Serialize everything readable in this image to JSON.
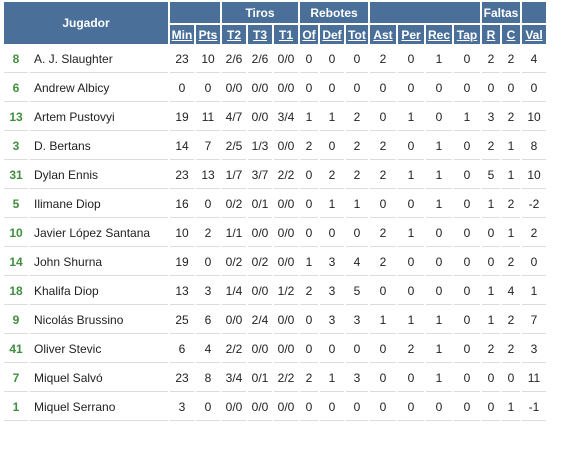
{
  "header": {
    "jugador": "Jugador",
    "groups": {
      "tiros": "Tiros",
      "rebotes": "Rebotes",
      "faltas": "Faltas"
    },
    "columns": [
      "Min",
      "Pts",
      "T2",
      "T3",
      "T1",
      "Of",
      "Def",
      "Tot",
      "Ast",
      "Per",
      "Rec",
      "Tap",
      "R",
      "C",
      "Val"
    ]
  },
  "players": [
    {
      "number": "8",
      "name": "A. J. Slaughter",
      "stats": [
        "23",
        "10",
        "2/6",
        "2/6",
        "0/0",
        "0",
        "0",
        "0",
        "2",
        "0",
        "1",
        "0",
        "2",
        "2",
        "4"
      ]
    },
    {
      "number": "6",
      "name": "Andrew Albicy",
      "stats": [
        "0",
        "0",
        "0/0",
        "0/0",
        "0/0",
        "0",
        "0",
        "0",
        "0",
        "0",
        "0",
        "0",
        "0",
        "0",
        "0"
      ]
    },
    {
      "number": "13",
      "name": "Artem Pustovyi",
      "stats": [
        "19",
        "11",
        "4/7",
        "0/0",
        "3/4",
        "1",
        "1",
        "2",
        "0",
        "1",
        "0",
        "1",
        "3",
        "2",
        "10"
      ]
    },
    {
      "number": "3",
      "name": "D. Bertans",
      "stats": [
        "14",
        "7",
        "2/5",
        "1/3",
        "0/0",
        "2",
        "0",
        "2",
        "2",
        "0",
        "1",
        "0",
        "2",
        "1",
        "8"
      ]
    },
    {
      "number": "31",
      "name": "Dylan Ennis",
      "stats": [
        "23",
        "13",
        "1/7",
        "3/7",
        "2/2",
        "0",
        "2",
        "2",
        "2",
        "1",
        "1",
        "0",
        "5",
        "1",
        "10"
      ]
    },
    {
      "number": "5",
      "name": "Ilimane Diop",
      "stats": [
        "16",
        "0",
        "0/2",
        "0/1",
        "0/0",
        "0",
        "1",
        "1",
        "0",
        "0",
        "1",
        "0",
        "1",
        "2",
        "-2"
      ]
    },
    {
      "number": "10",
      "name": "Javier López Santana",
      "stats": [
        "10",
        "2",
        "1/1",
        "0/0",
        "0/0",
        "0",
        "0",
        "0",
        "2",
        "1",
        "0",
        "0",
        "0",
        "1",
        "2"
      ]
    },
    {
      "number": "14",
      "name": "John Shurna",
      "stats": [
        "19",
        "0",
        "0/2",
        "0/2",
        "0/0",
        "1",
        "3",
        "4",
        "2",
        "0",
        "0",
        "0",
        "0",
        "2",
        "0"
      ]
    },
    {
      "number": "18",
      "name": "Khalifa Diop",
      "stats": [
        "13",
        "3",
        "1/4",
        "0/0",
        "1/2",
        "2",
        "3",
        "5",
        "0",
        "0",
        "0",
        "0",
        "1",
        "4",
        "1"
      ]
    },
    {
      "number": "9",
      "name": "Nicolás Brussino",
      "stats": [
        "25",
        "6",
        "0/0",
        "2/4",
        "0/0",
        "0",
        "3",
        "3",
        "1",
        "1",
        "1",
        "0",
        "1",
        "2",
        "7"
      ]
    },
    {
      "number": "41",
      "name": "Oliver Stevic",
      "stats": [
        "6",
        "4",
        "2/2",
        "0/0",
        "0/0",
        "0",
        "0",
        "0",
        "0",
        "2",
        "1",
        "0",
        "2",
        "2",
        "3"
      ]
    },
    {
      "number": "7",
      "name": "Miquel Salvó",
      "stats": [
        "23",
        "8",
        "3/4",
        "0/1",
        "2/2",
        "2",
        "1",
        "3",
        "0",
        "0",
        "1",
        "0",
        "0",
        "0",
        "11"
      ]
    },
    {
      "number": "1",
      "name": "Miquel Serrano",
      "stats": [
        "3",
        "0",
        "0/0",
        "0/0",
        "0/0",
        "0",
        "0",
        "0",
        "0",
        "0",
        "0",
        "0",
        "0",
        "1",
        "-1"
      ]
    }
  ]
}
